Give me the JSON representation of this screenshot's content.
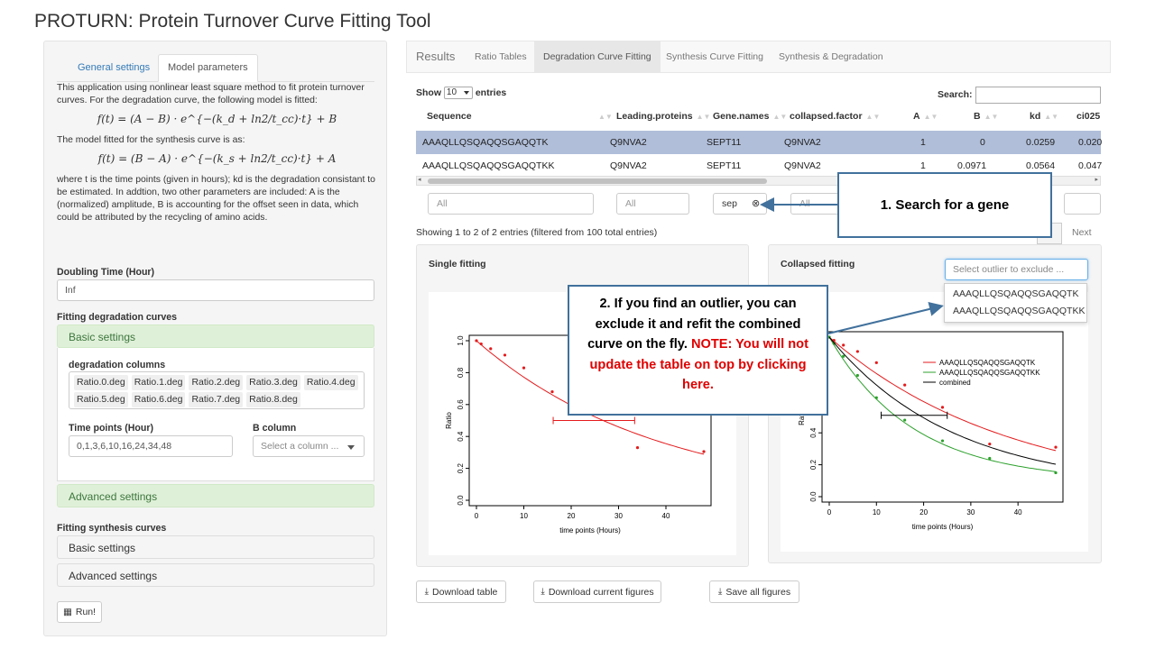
{
  "title": "PROTURN: Protein Turnover Curve Fitting Tool",
  "left": {
    "tabs": [
      {
        "label": "General settings"
      },
      {
        "label": "Model parameters"
      }
    ],
    "intro": "This application using nonlinear least square method to fit protein turnover curves. For the degradation curve, the following model is fitted:",
    "formula_deg": "f(t) = (A − B) · e^{−(k_d + ln2/t_cc)·t} + B",
    "synthesis_text": "The model fitted for the synthesis curve is as:",
    "formula_syn": "f(t) = (B − A) · e^{−(k_s + ln2/t_cc)·t} + A",
    "params_text": "where t is the time points (given in hours); kd is the degradation consistant to be estimated. In addtion, two other parameters are included: A is the (normalized) amplitude, B is accounting for the offset seen in data, which could be attributed by the recycling of amino acids.",
    "doubling_label": "Doubling Time (Hour)",
    "doubling_value": "Inf",
    "fit_deg_label": "Fitting degradation curves",
    "basic_settings": "Basic settings",
    "deg_columns_label": "degradation columns",
    "deg_columns": [
      "Ratio.0.deg",
      "Ratio.1.deg",
      "Ratio.2.deg",
      "Ratio.3.deg",
      "Ratio.4.deg",
      "Ratio.5.deg",
      "Ratio.6.deg",
      "Ratio.7.deg",
      "Ratio.8.deg"
    ],
    "time_points_label": "Time points (Hour)",
    "time_points_value": "0,1,3,6,10,16,24,34,48",
    "b_column_label": "B column",
    "b_column_placeholder": "Select a column ...",
    "advanced_settings": "Advanced settings",
    "fit_syn_label": "Fitting synthesis curves",
    "syn_basic": "Basic settings",
    "syn_advanced": "Advanced settings",
    "run_label": "Run!"
  },
  "nav": {
    "brand": "Results",
    "tabs": [
      {
        "label": "Ratio Tables"
      },
      {
        "label": "Degradation Curve Fitting"
      },
      {
        "label": "Synthesis Curve Fitting"
      },
      {
        "label": "Synthesis & Degradation"
      }
    ]
  },
  "table": {
    "show": "Show",
    "length": "10",
    "entries": "entries",
    "search_label": "Search:",
    "columns": [
      "Sequence",
      "Leading.proteins",
      "Gene.names",
      "collapsed.factor",
      "A",
      "B",
      "kd",
      "ci025"
    ],
    "rows": [
      [
        "AAAQLLQSQAQQSGAQQTK",
        "Q9NVA2",
        "SEPT11",
        "Q9NVA2",
        "1",
        "0",
        "0.0259",
        "0.020"
      ],
      [
        "AAAQLLQSQAQQSGAQQTKK",
        "Q9NVA2",
        "SEPT11",
        "Q9NVA2",
        "1",
        "0.0971",
        "0.0564",
        "0.047"
      ]
    ],
    "filters": [
      "All",
      "All",
      "sep",
      "All"
    ],
    "info": "Showing 1 to 2 of 2 entries (filtered from 100 total entries)",
    "next": "Next"
  },
  "single_fit": {
    "title": "Single fitting",
    "chart_data": {
      "type": "scatter",
      "xlabel": "time points (Hours)",
      "ylabel": "Ratio",
      "xticks": [
        0,
        10,
        20,
        30,
        40
      ],
      "yticks": [
        "0.0",
        "0.2",
        "0.4",
        "0.6",
        "0.8",
        "1.0"
      ],
      "xlim": [
        0,
        48
      ],
      "ylim": [
        0,
        1
      ],
      "points": [
        [
          0,
          1.0
        ],
        [
          1,
          0.98
        ],
        [
          3,
          0.95
        ],
        [
          6,
          0.91
        ],
        [
          10,
          0.83
        ],
        [
          16,
          0.68
        ],
        [
          24,
          0.56
        ],
        [
          34,
          0.33
        ],
        [
          48,
          0.305
        ]
      ],
      "kd": 0.0259,
      "A": 1,
      "B": 0,
      "halflife_ci": [
        16.2,
        33.4
      ],
      "halflife_y": 0.5,
      "color": "#e41a1c"
    }
  },
  "collapsed_fit": {
    "title": "Collapsed fitting",
    "select_placeholder": "Select outlier to exclude ...",
    "options": [
      "AAAQLLQSQAQQSGAQQTK",
      "AAAQLLQSQAQQSGAQQTKK"
    ],
    "chart_data": {
      "type": "line",
      "xlabel": "time points (Hours)",
      "ylabel": "Ratio",
      "xticks": [
        0,
        10,
        20,
        30,
        40
      ],
      "yticks": [
        "0.0",
        "0.2",
        "0.4",
        "0.6",
        "0.8",
        "1.0"
      ],
      "xlim": [
        0,
        48
      ],
      "ylim": [
        0,
        1
      ],
      "series": [
        {
          "name": "AAAQLLQSQAQQSGAQQTK",
          "color": "#e41a1c",
          "A": 1,
          "B": 0,
          "kd": 0.0259,
          "points": [
            [
              0,
              1.0
            ],
            [
              1,
              0.98
            ],
            [
              3,
              0.95
            ],
            [
              6,
              0.91
            ],
            [
              10,
              0.84
            ],
            [
              16,
              0.7
            ],
            [
              24,
              0.56
            ],
            [
              34,
              0.33
            ],
            [
              48,
              0.31
            ]
          ]
        },
        {
          "name": "AAAQLLQSQAQQSGAQQTKK",
          "color": "#2ca02c",
          "A": 1,
          "B": 0.0971,
          "kd": 0.0564,
          "points": [
            [
              0,
              1.0
            ],
            [
              1,
              0.96
            ],
            [
              3,
              0.88
            ],
            [
              6,
              0.76
            ],
            [
              10,
              0.62
            ],
            [
              16,
              0.48
            ],
            [
              24,
              0.35
            ],
            [
              34,
              0.24
            ],
            [
              48,
              0.15
            ]
          ]
        },
        {
          "name": "combined",
          "color": "#000000",
          "A": 1,
          "B": 0.05,
          "kd": 0.038,
          "points": []
        }
      ],
      "halflife_ci": [
        11,
        25
      ],
      "halflife_y": 0.51
    }
  },
  "buttons": {
    "download_table": "Download table",
    "download_figures": "Download current figures",
    "save_all": "Save all figures"
  },
  "callouts": {
    "one": "1. Search for a gene",
    "two_a": "2. If you find an outlier, you can exclude it and refit the combined curve on the fly.",
    "two_b": "NOTE: You will not update the table on top by clicking here."
  },
  "colors": {
    "callout_border": "#41719c",
    "note_red": "#e00000",
    "selected_row": "#b0bed9"
  }
}
